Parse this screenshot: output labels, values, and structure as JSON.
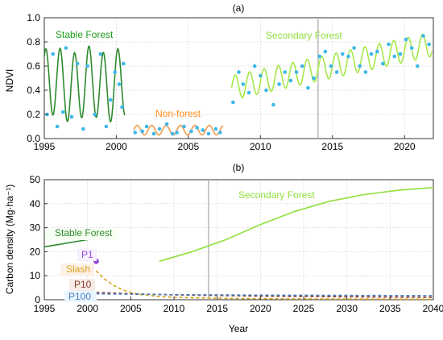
{
  "chart_data": [
    {
      "type": "line",
      "panel_label": "(a)",
      "xlabel": "",
      "ylabel": "NDVI",
      "xlim": [
        1995,
        2022
      ],
      "ylim": [
        0,
        1.0
      ],
      "xticks": [
        "1995",
        "2000",
        "2005",
        "2010",
        "2015",
        "2020"
      ],
      "yticks": [
        "0.0",
        "0.2",
        "0.4",
        "0.6",
        "0.8",
        "1.0"
      ],
      "grid": true,
      "vline_year": 2014,
      "annotations": [
        {
          "text": "Stable Forest",
          "color": "#1e9d1e"
        },
        {
          "text": "Non-forest",
          "color": "#ff8c1a"
        },
        {
          "text": "Secondary Forest",
          "color": "#8fe03b"
        }
      ],
      "series": [
        {
          "segment": "stable",
          "color": "#2e8b2e",
          "x_range": [
            1995.0,
            2000.6
          ],
          "baseline": 0.45,
          "amplitude": 0.3,
          "period": 1.0
        },
        {
          "segment": "nonforest",
          "color": "#f39c4a",
          "x_range": [
            2001.2,
            2007.4
          ],
          "baseline": 0.07,
          "amplitude": 0.04,
          "period": 1.0
        },
        {
          "segment": "secondary",
          "color": "#a6e84a",
          "x_range": [
            2008.0,
            2021.9
          ],
          "trend_start": 0.42,
          "trend_end": 0.78,
          "amplitude": 0.1,
          "period": 1.0
        }
      ],
      "points": {
        "color": "#3db7e8",
        "x": [
          1995.2,
          1995.6,
          1995.9,
          1996.3,
          1996.5,
          1996.9,
          1997.3,
          1997.7,
          1998.0,
          1998.5,
          1998.9,
          1999.3,
          1999.6,
          1999.9,
          2000.2,
          2000.4,
          2000.5,
          2001.3,
          2001.8,
          2002.1,
          2002.6,
          2003.0,
          2003.5,
          2003.9,
          2004.2,
          2004.7,
          2005.2,
          2005.6,
          2006.0,
          2006.4,
          2006.9,
          2007.2,
          2008.1,
          2008.5,
          2008.8,
          2009.2,
          2009.6,
          2010.0,
          2010.4,
          2010.9,
          2011.3,
          2011.7,
          2012.1,
          2012.5,
          2012.9,
          2013.3,
          2013.7,
          2014.1,
          2014.5,
          2014.9,
          2015.3,
          2015.7,
          2016.1,
          2016.5,
          2016.9,
          2017.3,
          2017.7,
          2018.1,
          2018.5,
          2018.9,
          2019.3,
          2019.7,
          2020.1,
          2020.5,
          2020.9,
          2021.3,
          2021.7
        ],
        "y": [
          0.2,
          0.7,
          0.1,
          0.22,
          0.75,
          0.18,
          0.62,
          0.08,
          0.6,
          0.2,
          0.7,
          0.1,
          0.32,
          0.55,
          0.45,
          0.26,
          0.62,
          0.05,
          0.06,
          0.1,
          0.04,
          0.08,
          0.12,
          0.04,
          0.05,
          0.1,
          0.06,
          0.09,
          0.07,
          0.04,
          0.08,
          0.05,
          0.3,
          0.55,
          0.45,
          0.38,
          0.6,
          0.52,
          0.4,
          0.28,
          0.45,
          0.55,
          0.48,
          0.55,
          0.6,
          0.42,
          0.5,
          0.68,
          0.72,
          0.6,
          0.55,
          0.7,
          0.68,
          0.75,
          0.6,
          0.55,
          0.7,
          0.72,
          0.62,
          0.78,
          0.68,
          0.7,
          0.82,
          0.75,
          0.6,
          0.85,
          0.78
        ]
      }
    },
    {
      "type": "line",
      "panel_label": "(b)",
      "xlabel": "Year",
      "ylabel": "Carbon density (Mg·ha⁻¹)",
      "xlim": [
        1995,
        2040
      ],
      "ylim": [
        0,
        50
      ],
      "xticks": [
        "1995",
        "2000",
        "2005",
        "2010",
        "2015",
        "2020",
        "2025",
        "2030",
        "2035",
        "2040"
      ],
      "yticks": [
        "0",
        "10",
        "20",
        "30",
        "40",
        "50"
      ],
      "grid": true,
      "vline_year": 2014,
      "series": [
        {
          "name": "Stable Forest",
          "color": "#2e8b2e",
          "dash": false,
          "x": [
            1995,
            2000.8
          ],
          "y": [
            22,
            25.5
          ]
        },
        {
          "name": "Secondary Forest",
          "color": "#8fe03b",
          "dash": false,
          "x": [
            2008.3,
            2012,
            2016,
            2020,
            2024,
            2028,
            2032,
            2036,
            2040
          ],
          "y": [
            16,
            19.9,
            25,
            31.3,
            36.8,
            41,
            43.8,
            45.6,
            46.7
          ]
        },
        {
          "name": "Slash",
          "color": "#d6a21c",
          "dash": true,
          "x": [
            2001,
            2002,
            2003,
            2004,
            2005,
            2006,
            2008,
            2010,
            2015,
            2020,
            2030,
            2040
          ],
          "y": [
            12,
            8.5,
            6,
            4.2,
            3,
            2.2,
            1.4,
            1.0,
            0.6,
            0.4,
            0.3,
            0.2
          ]
        },
        {
          "name": "P10",
          "color": "#8b3a2a",
          "dash": true,
          "x": [
            2001,
            2005,
            2010,
            2020,
            2030,
            2040
          ],
          "y": [
            3,
            2.5,
            2.0,
            1.5,
            1.2,
            1.0
          ]
        },
        {
          "name": "P100",
          "color": "#4a7fbf",
          "dash": true,
          "x": [
            2001,
            2005,
            2010,
            2020,
            2030,
            2040
          ],
          "y": [
            2.5,
            2.3,
            2.1,
            1.9,
            1.8,
            1.7
          ]
        }
      ],
      "markers": [
        {
          "name": "P1",
          "color": "#9b4ee0",
          "x": 2001,
          "y": 16
        }
      ],
      "labels": {
        "stable": "Stable Forest",
        "secondary": "Secondary Forest",
        "p1": "P1",
        "slash": "Slash",
        "p10": "P10",
        "p100": "P100"
      }
    }
  ]
}
